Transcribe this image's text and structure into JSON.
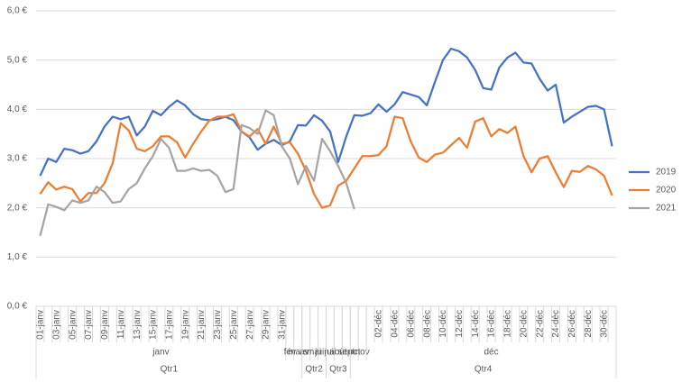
{
  "chart_data": {
    "type": "line",
    "x_axis": {
      "quarters": [
        {
          "label": "Qtr1",
          "months": [
            {
              "label": "janv",
              "days": [
                "01-janv",
                null,
                "03-janv",
                null,
                "05-janv",
                null,
                "07-janv",
                null,
                "09-janv",
                null,
                "11-janv",
                null,
                "13-janv",
                null,
                "15-janv",
                null,
                "17-janv",
                null,
                "19-janv",
                null,
                "21-janv",
                null,
                "23-janv",
                null,
                "25-janv",
                null,
                "27-janv",
                null,
                "29-janv",
                null,
                "31-janv"
              ]
            },
            {
              "label": "fév",
              "days": []
            },
            {
              "label": "mars",
              "days": []
            }
          ]
        },
        {
          "label": "Qtr2",
          "months": [
            {
              "label": "avr",
              "days": []
            },
            {
              "label": "mai",
              "days": []
            },
            {
              "label": "juin",
              "days": []
            }
          ]
        },
        {
          "label": "Qtr3",
          "months": [
            {
              "label": "juil",
              "days": []
            },
            {
              "label": "août",
              "days": []
            },
            {
              "label": "sept",
              "days": []
            }
          ]
        },
        {
          "label": "Qtr4",
          "months": [
            {
              "label": "oct",
              "days": []
            },
            {
              "label": "nov",
              "days": []
            },
            {
              "label": "déc",
              "days": [
                null,
                "02-déc",
                null,
                "04-déc",
                null,
                "06-déc",
                null,
                "08-déc",
                null,
                "10-déc",
                null,
                "12-déc",
                null,
                "14-déc",
                null,
                "16-déc",
                null,
                "18-déc",
                null,
                "20-déc",
                null,
                "22-déc",
                null,
                "24-déc",
                null,
                "26-déc",
                null,
                "28-déc",
                null,
                "30-déc",
                null
              ]
            }
          ]
        }
      ]
    },
    "series": [
      {
        "name": "2019",
        "color": "#4472c4",
        "values": [
          2.65,
          3.0,
          2.93,
          3.2,
          3.17,
          3.1,
          3.15,
          3.35,
          3.65,
          3.85,
          3.8,
          3.85,
          3.47,
          3.65,
          3.97,
          3.88,
          4.05,
          4.18,
          4.08,
          3.9,
          3.8,
          3.78,
          3.8,
          3.85,
          3.78,
          3.55,
          3.43,
          3.18,
          3.3,
          3.38,
          3.27,
          3.35,
          3.68,
          3.67,
          3.88,
          3.77,
          3.55,
          2.93,
          3.45,
          3.88,
          3.87,
          3.92,
          4.1,
          3.95,
          4.1,
          4.35,
          4.3,
          4.25,
          4.08,
          4.55,
          5.0,
          5.23,
          5.18,
          5.05,
          4.8,
          4.43,
          4.4,
          4.85,
          5.05,
          5.15,
          4.95,
          4.93,
          4.62,
          4.38,
          4.5,
          3.73,
          3.85,
          3.95,
          4.05,
          4.07,
          4.0,
          3.25
        ]
      },
      {
        "name": "2020",
        "color": "#ed7d31",
        "values": [
          2.28,
          2.52,
          2.37,
          2.43,
          2.38,
          2.13,
          2.3,
          2.3,
          2.5,
          2.9,
          3.72,
          3.57,
          3.2,
          3.15,
          3.25,
          3.45,
          3.45,
          3.33,
          3.02,
          3.3,
          3.55,
          3.77,
          3.85,
          3.85,
          3.9,
          3.55,
          3.45,
          3.6,
          3.3,
          3.65,
          3.3,
          3.33,
          3.1,
          2.75,
          2.28,
          2.0,
          2.05,
          2.45,
          2.55,
          2.8,
          3.05,
          3.05,
          3.07,
          3.25,
          3.85,
          3.82,
          3.35,
          3.02,
          2.93,
          3.08,
          3.12,
          3.27,
          3.42,
          3.22,
          3.75,
          3.82,
          3.45,
          3.6,
          3.52,
          3.65,
          3.05,
          2.72,
          3.0,
          3.05,
          2.72,
          2.42,
          2.75,
          2.73,
          2.85,
          2.78,
          2.65,
          2.25
        ]
      },
      {
        "name": "2021",
        "color": "#a5a5a5",
        "values": [
          1.43,
          2.07,
          2.02,
          1.95,
          2.15,
          2.1,
          2.15,
          2.43,
          2.32,
          2.1,
          2.13,
          2.38,
          2.5,
          2.8,
          3.05,
          3.4,
          3.22,
          2.75,
          2.75,
          2.8,
          2.75,
          2.77,
          2.65,
          2.32,
          2.38,
          3.68,
          3.62,
          3.5,
          3.98,
          3.88,
          3.25,
          3.0,
          2.48,
          2.85,
          2.55,
          3.4,
          3.15,
          2.85,
          2.5,
          1.97,
          null,
          null,
          null,
          null,
          null,
          null,
          null,
          null,
          null,
          null,
          null,
          null,
          null,
          null,
          null,
          null,
          null,
          null,
          null,
          null,
          null,
          null,
          null,
          null,
          null,
          null,
          null,
          null,
          null,
          null,
          null,
          null
        ]
      }
    ],
    "ylim": [
      0,
      6
    ],
    "yticks": [
      {
        "value": 0,
        "label": "0,0 €"
      },
      {
        "value": 1,
        "label": "1,0 €"
      },
      {
        "value": 2,
        "label": "2,0 €"
      },
      {
        "value": 3,
        "label": "3,0 €"
      },
      {
        "value": 4,
        "label": "4,0 €"
      },
      {
        "value": 5,
        "label": "5,0 €"
      },
      {
        "value": 6,
        "label": "6,0 €"
      }
    ],
    "grid": true,
    "legend": "right"
  }
}
